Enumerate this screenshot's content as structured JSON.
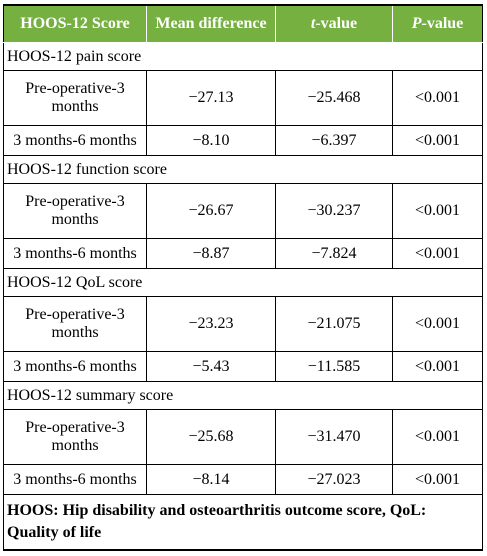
{
  "table": {
    "header": [
      "HOOS-12 Score",
      "Mean difference",
      {
        "italic": "t",
        "text": "-value"
      },
      {
        "italic": "P",
        "text": "-value"
      }
    ],
    "sections": [
      {
        "title": "HOOS-12 pain score",
        "rows": [
          [
            "Pre-operative-3 months",
            "−27.13",
            "−25.468",
            "<0.001"
          ],
          [
            "3 months-6 months",
            "−8.10",
            "−6.397",
            "<0.001"
          ]
        ]
      },
      {
        "title": "HOOS-12 function score",
        "rows": [
          [
            "Pre-operative-3 months",
            "−26.67",
            "−30.237",
            "<0.001"
          ],
          [
            "3 months-6 months",
            "−8.87",
            "−7.824",
            "<0.001"
          ]
        ]
      },
      {
        "title": "HOOS-12 QoL score",
        "rows": [
          [
            "Pre-operative-3 months",
            "−23.23",
            "−21.075",
            "<0.001"
          ],
          [
            "3 months-6 months",
            "−5.43",
            "−11.585",
            "<0.001"
          ]
        ]
      },
      {
        "title": "HOOS-12 summary score",
        "rows": [
          [
            "Pre-operative-3 months",
            "−25.68",
            "−31.470",
            "<0.001"
          ],
          [
            "3 months-6 months",
            "−8.14",
            "−27.023",
            "<0.001"
          ]
        ]
      }
    ],
    "footnote": "HOOS: Hip disability and osteoarthritis outcome score, QoL: Quality of life"
  }
}
